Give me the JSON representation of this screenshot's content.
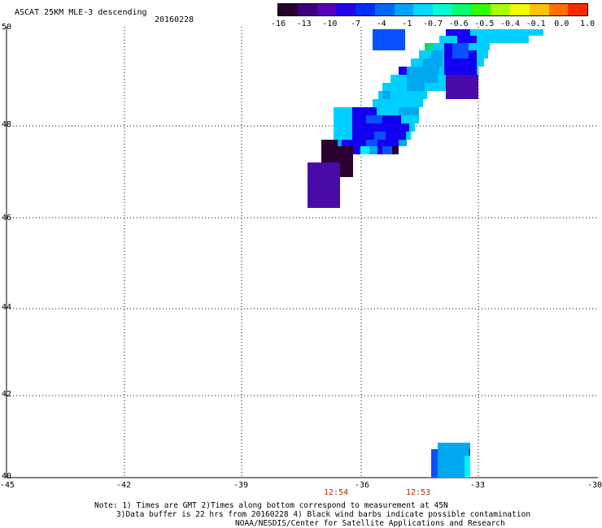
{
  "header": {
    "title": "ASCAT 25KM MLE-3 descending",
    "date": "20160228"
  },
  "colorbar": {
    "colors": [
      "#2a0030",
      "#3e007a",
      "#5a00b8",
      "#2200e8",
      "#0030ff",
      "#006aff",
      "#00a4ff",
      "#00d8ff",
      "#00ffd2",
      "#00ff70",
      "#30ff00",
      "#a8ff00",
      "#f0ff00",
      "#ffc000",
      "#ff7000",
      "#ff2a00"
    ],
    "labels": [
      "-16",
      "-13",
      "-10",
      "-7",
      "-4",
      "-1",
      "-0.7",
      "-0.6",
      "-0.5",
      "-0.4",
      "-0.1",
      "0.0",
      "1.0"
    ]
  },
  "map": {
    "lat_labels": [
      "50",
      "48",
      "46",
      "44",
      "42",
      "40"
    ],
    "lon_labels": [
      "-45",
      "-42",
      "-39",
      "-36",
      "-33",
      "-30"
    ],
    "lat_range": [
      40,
      50
    ],
    "lon_range": [
      -45,
      -30
    ],
    "grid": true,
    "palette": {
      "dk": "#2a0030",
      "pu": "#4a0aa8",
      "bl": "#1400f0",
      "mb": "#0a50ff",
      "sb": "#00a8f0",
      "lc": "#00d0ff",
      "cy": "#00f4ff",
      "gr": "#00e060"
    }
  },
  "times": [
    {
      "label": "12:54",
      "lon": -37.4
    },
    {
      "label": "12:53",
      "lon": -35.3
    }
  ],
  "notes": {
    "line1": "Note: 1) Times are GMT 2)Times along bottom correspond to measurement at 45N",
    "line2": "3)Data buffer is 22 hrs from 20160228 4) Black wind barbs indicate possible contamination",
    "line3": "NOAA/NESDIS/Center for Satellite Applications and Research"
  }
}
